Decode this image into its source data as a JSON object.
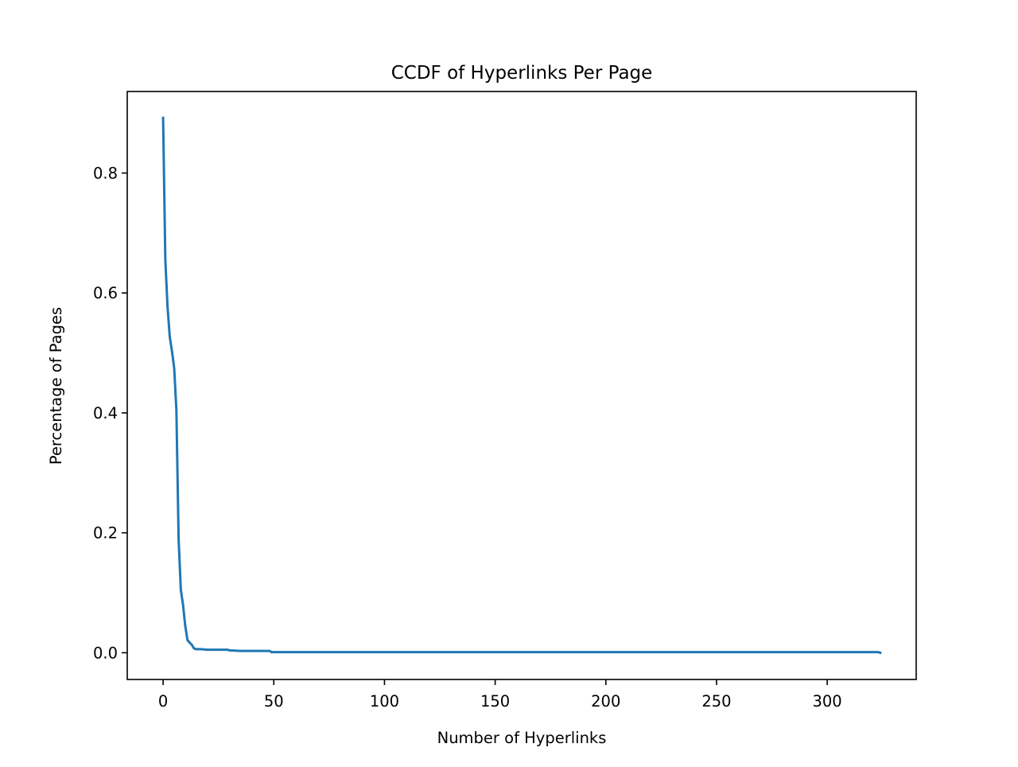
{
  "chart_data": {
    "type": "line",
    "title": "CCDF of Hyperlinks Per Page",
    "xlabel": "Number of Hyperlinks",
    "ylabel": "Percentage of Pages",
    "xlim": [
      -16.2,
      340.2
    ],
    "ylim": [
      -0.0446,
      0.936
    ],
    "xticks": [
      0,
      50,
      100,
      150,
      200,
      250,
      300
    ],
    "xtick_labels": [
      "0",
      "50",
      "100",
      "150",
      "200",
      "250",
      "300"
    ],
    "yticks": [
      0.0,
      0.2,
      0.4,
      0.6,
      0.8
    ],
    "ytick_labels": [
      "0.0",
      "0.2",
      "0.4",
      "0.6",
      "0.8"
    ],
    "grid": false,
    "legend": "none",
    "series": [
      {
        "color": "#1f77b4",
        "x": [
          0,
          1,
          2,
          3,
          4,
          5,
          6,
          7,
          8,
          9,
          10,
          11,
          12,
          13,
          14,
          15,
          17,
          20,
          25,
          29,
          30,
          35,
          40,
          48,
          49,
          60,
          80,
          100,
          150,
          200,
          250,
          300,
          320,
          322,
          323,
          324
        ],
        "y": [
          0.892,
          0.655,
          0.577,
          0.527,
          0.503,
          0.475,
          0.405,
          0.19,
          0.105,
          0.08,
          0.045,
          0.021,
          0.017,
          0.013,
          0.007,
          0.006,
          0.006,
          0.005,
          0.005,
          0.005,
          0.004,
          0.003,
          0.003,
          0.003,
          0.001,
          0.001,
          0.001,
          0.001,
          0.001,
          0.001,
          0.001,
          0.001,
          0.001,
          0.001,
          0.001,
          0.0
        ]
      }
    ]
  }
}
